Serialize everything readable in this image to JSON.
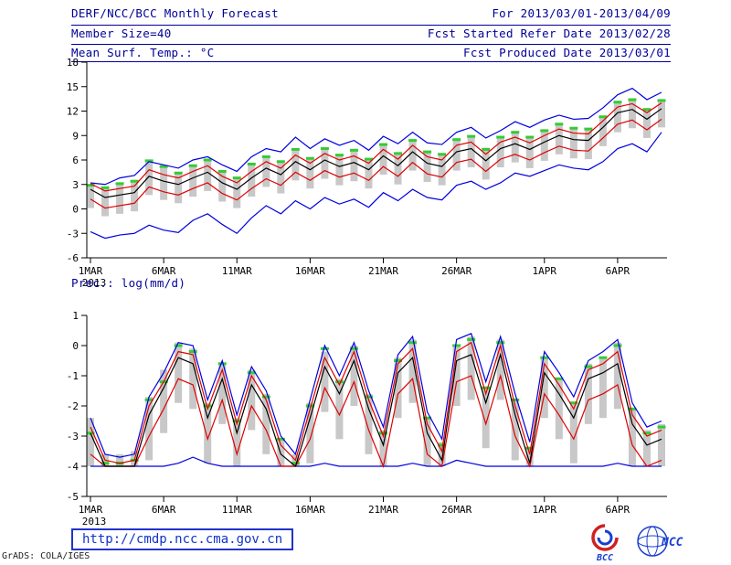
{
  "header": {
    "title": "DERF/NCC/BCC Monthly Forecast",
    "forecast_period": "For 2013/03/01-2013/04/09",
    "member_size": "Member Size=40",
    "refer_date": "Fcst Started Refer Date 2013/02/28",
    "temp_title": "Mean Surf. Temp.: °C",
    "produced_date": "Fcst Produced Date 2013/03/01"
  },
  "footer": {
    "url": "http://cmdp.ncc.cma.gov.cn",
    "grads_credit": "GrADS: COLA/IGES",
    "bcc_label": "BCC",
    "ncc_label": "NCC"
  },
  "colors": {
    "header_blue": "#000099",
    "line_blue": "#0000e0",
    "line_red": "#e00000",
    "line_black": "#000000",
    "marker_green": "#33cc33",
    "bar_gray": "#c8c8c8"
  },
  "chart_data": [
    {
      "type": "line",
      "title": "Mean Surf. Temp.: °C",
      "ylabel": "",
      "xlabel": "",
      "ylim": [
        -6,
        18
      ],
      "yticks": [
        18,
        15,
        12,
        9,
        6,
        3,
        0,
        -3,
        -6
      ],
      "n_days": 40,
      "x_year_label": "2013",
      "xticks": [
        {
          "pos": 0,
          "label": "1MAR"
        },
        {
          "pos": 5,
          "label": "6MAR"
        },
        {
          "pos": 10,
          "label": "11MAR"
        },
        {
          "pos": 15,
          "label": "16MAR"
        },
        {
          "pos": 20,
          "label": "21MAR"
        },
        {
          "pos": 25,
          "label": "26MAR"
        },
        {
          "pos": 31,
          "label": "1APR"
        },
        {
          "pos": 36,
          "label": "6APR"
        }
      ],
      "bars": {
        "color": "#c8c8c8",
        "low": [
          0.1,
          -0.9,
          -0.6,
          -0.3,
          1.7,
          1.1,
          0.7,
          1.5,
          2.2,
          0.9,
          0.1,
          1.5,
          2.7,
          1.9,
          3.5,
          2.5,
          3.7,
          2.9,
          3.4,
          2.5,
          4.2,
          3.0,
          4.7,
          3.3,
          2.9,
          4.7,
          5.1,
          3.6,
          5.1,
          5.7,
          5.0,
          5.9,
          6.7,
          6.2,
          6.1,
          7.7,
          9.4,
          9.9,
          8.7,
          10.0
        ],
        "high": [
          3.0,
          2.7,
          3.2,
          3.5,
          6.0,
          5.3,
          4.5,
          5.4,
          6.1,
          4.7,
          3.9,
          5.6,
          6.5,
          5.9,
          7.4,
          6.3,
          7.5,
          6.7,
          7.3,
          6.2,
          8.0,
          6.9,
          8.5,
          7.1,
          6.8,
          8.6,
          9.0,
          7.5,
          8.9,
          9.5,
          8.9,
          9.7,
          10.5,
          10.0,
          9.9,
          11.4,
          13.2,
          13.5,
          12.3,
          13.4
        ]
      },
      "markers": {
        "name": "green-dashes",
        "color": "#33cc33",
        "values": [
          2.9,
          2.6,
          3.1,
          3.4,
          5.9,
          5.2,
          4.4,
          5.3,
          6.0,
          4.6,
          3.8,
          5.5,
          6.4,
          5.8,
          7.3,
          6.2,
          7.4,
          6.6,
          7.2,
          6.1,
          7.9,
          6.8,
          8.4,
          7.0,
          6.7,
          8.5,
          8.9,
          7.3,
          8.8,
          9.4,
          8.8,
          9.6,
          10.4,
          9.9,
          9.8,
          11.3,
          13.1,
          13.4,
          12.2,
          13.3
        ]
      },
      "series": [
        {
          "name": "blue-upper",
          "color": "#0000e0",
          "values": [
            3.2,
            3.0,
            3.8,
            4.1,
            5.8,
            5.4,
            5.0,
            6.0,
            6.4,
            5.4,
            4.6,
            6.4,
            7.4,
            7.0,
            8.8,
            7.4,
            8.6,
            7.8,
            8.4,
            7.2,
            8.9,
            8.0,
            9.4,
            8.1,
            7.9,
            9.4,
            10.0,
            8.7,
            9.6,
            10.7,
            10.0,
            10.9,
            11.5,
            11.0,
            11.1,
            12.4,
            14.0,
            14.8,
            13.4,
            14.3
          ]
        },
        {
          "name": "blue-lower",
          "color": "#0000e0",
          "values": [
            -2.8,
            -3.6,
            -3.2,
            -3.0,
            -2.0,
            -2.6,
            -2.9,
            -1.4,
            -0.6,
            -1.9,
            -3.0,
            -1.1,
            0.4,
            -0.6,
            1.0,
            0.0,
            1.4,
            0.6,
            1.2,
            0.2,
            2.0,
            1.0,
            2.4,
            1.4,
            1.1,
            2.9,
            3.4,
            2.4,
            3.2,
            4.4,
            4.0,
            4.7,
            5.4,
            5.0,
            4.8,
            5.8,
            7.4,
            8.0,
            7.0,
            9.4
          ]
        },
        {
          "name": "red-upper",
          "color": "#e00000",
          "values": [
            3.1,
            2.2,
            2.5,
            2.8,
            4.8,
            4.2,
            3.8,
            4.6,
            5.3,
            4.0,
            3.2,
            4.6,
            5.8,
            5.0,
            6.6,
            5.6,
            6.8,
            6.0,
            6.5,
            5.6,
            7.3,
            6.1,
            7.8,
            6.4,
            6.0,
            7.8,
            8.2,
            6.7,
            8.2,
            8.8,
            8.1,
            9.0,
            9.8,
            9.3,
            9.2,
            10.8,
            12.5,
            12.9,
            11.8,
            13.0
          ]
        },
        {
          "name": "red-lower",
          "color": "#e00000",
          "values": [
            1.2,
            0.1,
            0.4,
            0.7,
            2.7,
            2.1,
            1.7,
            2.5,
            3.2,
            1.9,
            1.1,
            2.5,
            3.7,
            2.9,
            4.5,
            3.5,
            4.7,
            3.9,
            4.4,
            3.5,
            5.2,
            4.0,
            5.7,
            4.3,
            3.9,
            5.7,
            6.1,
            4.6,
            6.1,
            6.7,
            6.0,
            6.9,
            7.7,
            7.2,
            7.1,
            8.7,
            10.4,
            10.9,
            9.7,
            11.0
          ]
        },
        {
          "name": "black-mean",
          "color": "#000000",
          "values": [
            2.4,
            1.4,
            1.7,
            2.0,
            4.0,
            3.4,
            3.0,
            3.8,
            4.5,
            3.2,
            2.4,
            3.8,
            5.0,
            4.2,
            5.8,
            4.8,
            6.0,
            5.2,
            5.7,
            4.8,
            6.5,
            5.3,
            7.0,
            5.6,
            5.2,
            7.0,
            7.4,
            5.9,
            7.4,
            8.0,
            7.3,
            8.2,
            9.0,
            8.5,
            8.4,
            10.0,
            11.8,
            12.2,
            11.0,
            12.3
          ]
        }
      ]
    },
    {
      "type": "line",
      "title": "Prec.: log(mm/d)",
      "ylabel": "",
      "xlabel": "",
      "ylim": [
        -5,
        1
      ],
      "yticks": [
        1,
        0,
        -1,
        -2,
        -3,
        -4,
        -5
      ],
      "n_days": 40,
      "x_year_label": "2013",
      "xticks": [
        {
          "pos": 0,
          "label": "1MAR"
        },
        {
          "pos": 5,
          "label": "6MAR"
        },
        {
          "pos": 10,
          "label": "11MAR"
        },
        {
          "pos": 15,
          "label": "16MAR"
        },
        {
          "pos": 20,
          "label": "21MAR"
        },
        {
          "pos": 25,
          "label": "26MAR"
        },
        {
          "pos": 31,
          "label": "1APR"
        },
        {
          "pos": 36,
          "label": "6APR"
        }
      ],
      "bars": {
        "color": "#c8c8c8",
        "low": [
          -4.0,
          -4.0,
          -4.0,
          -4.0,
          -3.8,
          -2.9,
          -1.9,
          -2.1,
          -3.9,
          -2.6,
          -4.0,
          -2.8,
          -3.6,
          -4.0,
          -4.0,
          -3.9,
          -2.2,
          -3.1,
          -2.0,
          -3.6,
          -4.0,
          -2.4,
          -1.9,
          -4.0,
          -4.0,
          -2.0,
          -1.8,
          -3.4,
          -1.8,
          -3.8,
          -4.0,
          -2.4,
          -3.1,
          -3.9,
          -2.6,
          -2.4,
          -2.1,
          -4.0,
          -4.0,
          -4.0
        ],
        "high": [
          -2.4,
          -3.6,
          -3.6,
          -3.5,
          -1.7,
          -0.8,
          0.1,
          -0.1,
          -1.9,
          -0.6,
          -2.4,
          -0.8,
          -1.6,
          -3.1,
          -3.6,
          -1.9,
          -0.2,
          -1.1,
          0.0,
          -1.6,
          -2.8,
          -0.4,
          0.2,
          -2.4,
          -3.2,
          0.0,
          0.3,
          -1.4,
          0.2,
          -1.8,
          -3.4,
          -0.4,
          -1.1,
          -1.9,
          -0.6,
          -0.4,
          0.1,
          -2.1,
          -2.8,
          -2.6
        ]
      },
      "markers": {
        "name": "green-dashes",
        "color": "#33cc33",
        "values": [
          -2.9,
          -3.9,
          -3.9,
          -3.8,
          -1.8,
          -1.2,
          0.0,
          -0.2,
          -2.0,
          -0.6,
          -2.5,
          -0.9,
          -1.7,
          -3.1,
          -3.9,
          -2.0,
          -0.1,
          -1.2,
          -0.1,
          -1.7,
          -2.9,
          -0.5,
          0.1,
          -2.4,
          -3.3,
          0.0,
          0.2,
          -1.4,
          0.1,
          -1.8,
          -3.4,
          -0.4,
          -1.1,
          -1.9,
          -0.7,
          -0.4,
          0.0,
          -2.1,
          -2.9,
          -2.7
        ]
      },
      "series": [
        {
          "name": "blue-upper",
          "color": "#0000e0",
          "values": [
            -2.4,
            -3.6,
            -3.7,
            -3.6,
            -1.7,
            -0.9,
            0.1,
            0.0,
            -1.8,
            -0.5,
            -2.3,
            -0.7,
            -1.5,
            -3.0,
            -3.6,
            -1.8,
            0.0,
            -1.0,
            0.1,
            -1.5,
            -2.7,
            -0.3,
            0.3,
            -2.2,
            -3.1,
            0.2,
            0.4,
            -1.2,
            0.3,
            -1.6,
            -3.2,
            -0.2,
            -0.9,
            -1.7,
            -0.5,
            -0.2,
            0.2,
            -1.9,
            -2.7,
            -2.5
          ]
        },
        {
          "name": "blue-lower",
          "color": "#0000e0",
          "values": [
            -4.0,
            -4.0,
            -4.0,
            -4.0,
            -4.0,
            -4.0,
            -3.9,
            -3.7,
            -3.9,
            -4.0,
            -4.0,
            -4.0,
            -4.0,
            -4.0,
            -4.0,
            -4.0,
            -3.9,
            -4.0,
            -4.0,
            -4.0,
            -4.0,
            -4.0,
            -3.9,
            -4.0,
            -4.0,
            -3.8,
            -3.9,
            -4.0,
            -4.0,
            -4.0,
            -4.0,
            -4.0,
            -4.0,
            -4.0,
            -4.0,
            -4.0,
            -3.9,
            -4.0,
            -4.0,
            -4.0
          ]
        },
        {
          "name": "red-upper",
          "color": "#e00000",
          "values": [
            -2.7,
            -3.8,
            -3.9,
            -3.8,
            -2.0,
            -1.2,
            -0.2,
            -0.3,
            -2.1,
            -0.8,
            -2.6,
            -1.0,
            -1.8,
            -3.3,
            -3.8,
            -2.1,
            -0.4,
            -1.3,
            -0.2,
            -1.8,
            -3.0,
            -0.6,
            -0.1,
            -2.6,
            -3.5,
            -0.2,
            0.1,
            -1.6,
            0.0,
            -2.0,
            -3.6,
            -0.6,
            -1.3,
            -2.1,
            -0.8,
            -0.6,
            -0.2,
            -2.3,
            -3.0,
            -2.8
          ]
        },
        {
          "name": "red-lower",
          "color": "#e00000",
          "values": [
            -3.6,
            -4.0,
            -4.0,
            -4.0,
            -3.0,
            -2.1,
            -1.1,
            -1.3,
            -3.1,
            -1.8,
            -3.6,
            -2.0,
            -2.8,
            -4.0,
            -4.0,
            -3.1,
            -1.4,
            -2.3,
            -1.2,
            -2.8,
            -4.0,
            -1.6,
            -1.1,
            -3.6,
            -4.0,
            -1.2,
            -1.0,
            -2.6,
            -1.0,
            -3.0,
            -4.0,
            -1.6,
            -2.3,
            -3.1,
            -1.8,
            -1.6,
            -1.3,
            -3.3,
            -4.0,
            -3.8
          ]
        },
        {
          "name": "black-mean",
          "color": "#000000",
          "values": [
            -2.9,
            -4.0,
            -4.0,
            -4.0,
            -2.3,
            -1.4,
            -0.4,
            -0.6,
            -2.4,
            -1.1,
            -2.9,
            -1.3,
            -2.1,
            -3.6,
            -4.0,
            -2.4,
            -0.7,
            -1.6,
            -0.5,
            -2.1,
            -3.3,
            -0.9,
            -0.4,
            -2.9,
            -3.8,
            -0.5,
            -0.3,
            -1.9,
            -0.3,
            -2.3,
            -3.9,
            -0.9,
            -1.6,
            -2.4,
            -1.1,
            -0.9,
            -0.6,
            -2.6,
            -3.3,
            -3.1
          ]
        }
      ]
    }
  ]
}
